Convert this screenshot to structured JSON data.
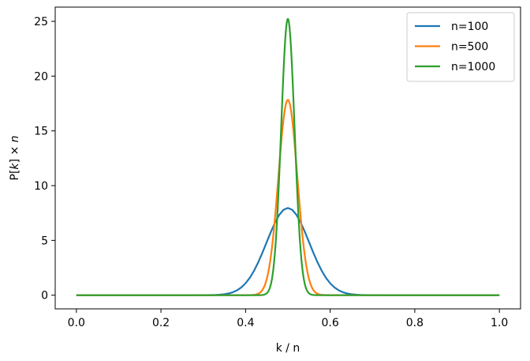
{
  "chart_data": {
    "type": "line",
    "xlabel": "k / n",
    "ylabel_parts": [
      "P[",
      "k",
      "] × ",
      "n"
    ],
    "xlim": [
      -0.05,
      1.05
    ],
    "ylim": [
      -1.25,
      26.3
    ],
    "xticks": [
      0.0,
      0.2,
      0.4,
      0.6,
      0.8,
      1.0
    ],
    "xtick_labels": [
      "0.0",
      "0.2",
      "0.4",
      "0.6",
      "0.8",
      "1.0"
    ],
    "yticks": [
      0,
      5,
      10,
      15,
      20,
      25
    ],
    "ytick_labels": [
      "0",
      "5",
      "10",
      "15",
      "20",
      "25"
    ],
    "grid": false,
    "legend_position": "top-right",
    "x_range": [
      0.0,
      1.0
    ],
    "series": [
      {
        "name": "n=100",
        "n": 100,
        "color": "#1f77b4"
      },
      {
        "name": "n=500",
        "n": 500,
        "color": "#ff7f0e"
      },
      {
        "name": "n=1000",
        "n": 1000,
        "color": "#2ca02c"
      }
    ]
  }
}
